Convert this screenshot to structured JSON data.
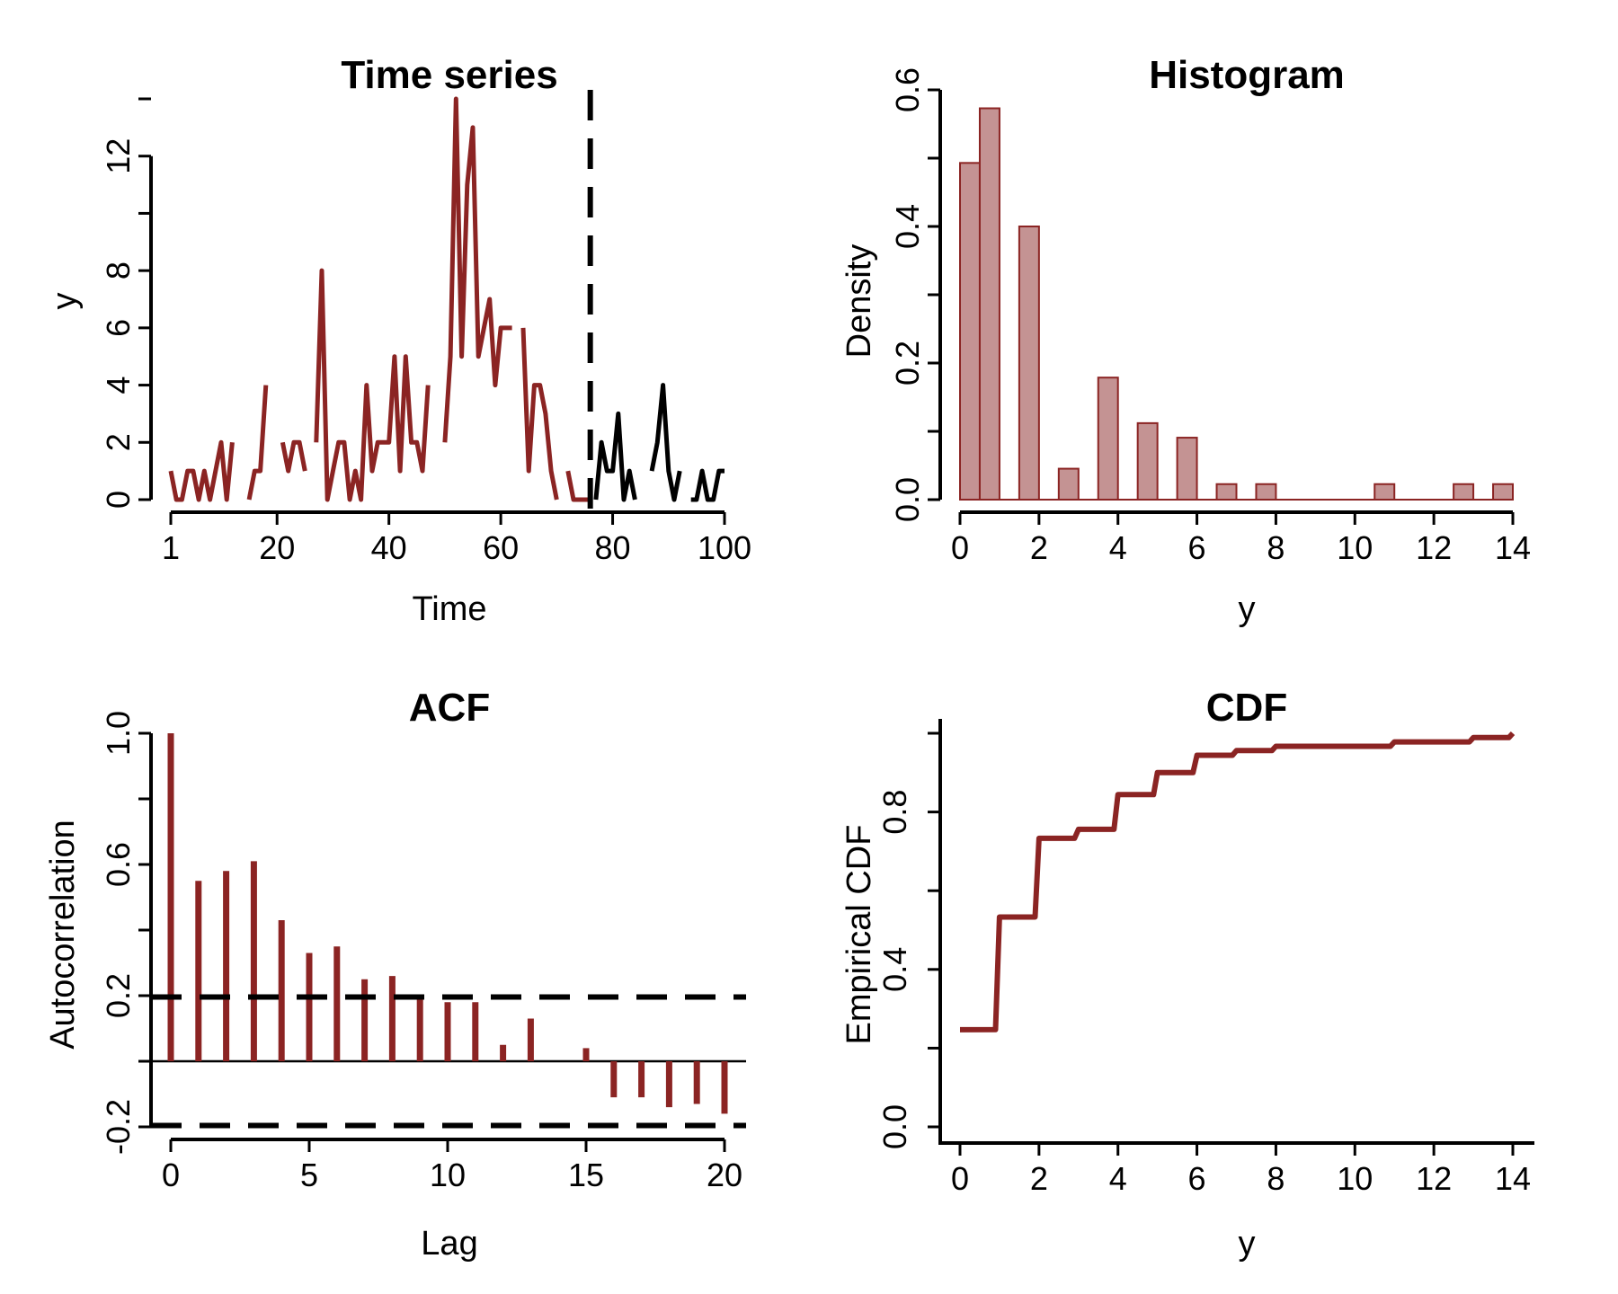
{
  "colors": {
    "series": "#8b2423",
    "fill": "#c49393",
    "forecast": "#000000",
    "axis": "#000000"
  },
  "chart_data": [
    {
      "type": "line",
      "title": "Time series",
      "xlabel": "Time",
      "ylabel": "y",
      "x_ticks": [
        "1",
        "20",
        "40",
        "60",
        "80",
        "100"
      ],
      "y_ticks": [
        "0",
        "2",
        "4",
        "6",
        "8",
        "12"
      ],
      "xlim": [
        1,
        100
      ],
      "ylim": [
        0,
        14
      ],
      "split_line_x": 76,
      "series": [
        {
          "color": "#8b2423",
          "x": [
            1,
            2,
            3,
            4,
            5,
            6,
            7,
            8,
            9,
            10,
            11,
            12,
            13,
            14,
            15,
            16,
            17,
            18,
            19,
            20,
            21,
            22,
            23,
            24,
            25,
            26,
            27,
            28,
            29,
            30,
            31,
            32,
            33,
            34,
            35,
            36,
            37,
            38,
            39,
            40,
            41,
            42,
            43,
            44,
            45,
            46,
            47,
            48,
            49,
            50,
            51,
            52,
            53,
            54,
            55,
            56,
            57,
            58,
            59,
            60,
            61,
            62,
            63,
            64,
            65,
            66,
            67,
            68,
            69,
            70,
            71,
            72,
            73,
            74,
            75,
            76
          ],
          "values": [
            1,
            0,
            0,
            1,
            1,
            0,
            1,
            0,
            1,
            2,
            0,
            2,
            null,
            null,
            0,
            1,
            1,
            4,
            null,
            null,
            2,
            1,
            2,
            2,
            1,
            null,
            2,
            8,
            0,
            1,
            2,
            2,
            0,
            1,
            0,
            4,
            1,
            2,
            2,
            2,
            5,
            1,
            5,
            2,
            2,
            1,
            4,
            null,
            null,
            2,
            5,
            14,
            5,
            11,
            13,
            5,
            6,
            7,
            4,
            6,
            6,
            6,
            null,
            6,
            1,
            4,
            4,
            3,
            1,
            0,
            null,
            1,
            0,
            0,
            0,
            0
          ]
        },
        {
          "color": "#000000",
          "x": [
            77,
            78,
            79,
            80,
            81,
            82,
            83,
            84,
            85,
            86,
            87,
            88,
            89,
            90,
            91,
            92,
            93,
            94,
            95,
            96,
            97,
            98,
            99,
            100
          ],
          "values": [
            0,
            2,
            1,
            1,
            3,
            0,
            1,
            0,
            null,
            null,
            1,
            2,
            4,
            1,
            0,
            1,
            null,
            0,
            0,
            1,
            0,
            0,
            1,
            1
          ]
        }
      ]
    },
    {
      "type": "bar",
      "title": "Histogram",
      "xlabel": "y",
      "ylabel": "Density",
      "x_ticks": [
        "0",
        "2",
        "4",
        "6",
        "8",
        "10",
        "12",
        "14"
      ],
      "y_ticks": [
        "0.0",
        "0.2",
        "0.4",
        "0.6"
      ],
      "xlim": [
        0,
        14
      ],
      "ylim": [
        0,
        0.6
      ],
      "bins": [
        [
          0,
          0.5
        ],
        [
          0.5,
          1
        ],
        [
          1.5,
          2
        ],
        [
          2.5,
          3
        ],
        [
          3.5,
          4
        ],
        [
          4.5,
          5
        ],
        [
          5.5,
          6
        ],
        [
          6.5,
          7
        ],
        [
          7.5,
          8
        ],
        [
          8.5,
          9
        ],
        [
          9.5,
          10
        ],
        [
          10.5,
          11
        ],
        [
          11.5,
          12
        ],
        [
          12.5,
          13
        ],
        [
          13.5,
          14
        ]
      ],
      "values": [
        0.493,
        0.573,
        0.4,
        0.0453,
        0.1787,
        0.112,
        0.0907,
        0.0227,
        0.0227,
        0,
        0,
        0.0227,
        0,
        0.0227,
        0.0227
      ]
    },
    {
      "type": "bar",
      "title": "ACF",
      "xlabel": "Lag",
      "ylabel": "Autocorrelation",
      "x_ticks": [
        "0",
        "5",
        "10",
        "15",
        "20"
      ],
      "y_ticks": [
        "-0.2",
        "0.2",
        "0.6",
        "1.0"
      ],
      "xlim": [
        0,
        20
      ],
      "ylim": [
        -0.2,
        1.0
      ],
      "lags": [
        0,
        1,
        2,
        3,
        4,
        5,
        6,
        7,
        8,
        9,
        10,
        11,
        12,
        13,
        14,
        15,
        16,
        17,
        18,
        19,
        20
      ],
      "values": [
        1.0,
        0.55,
        0.58,
        0.61,
        0.43,
        0.33,
        0.35,
        0.25,
        0.26,
        0.19,
        0.18,
        0.18,
        0.05,
        0.13,
        0.0,
        0.04,
        -0.11,
        -0.11,
        -0.14,
        -0.13,
        -0.16
      ],
      "confidence_bounds": [
        0.196,
        -0.196
      ]
    },
    {
      "type": "line",
      "title": "CDF",
      "xlabel": "y",
      "ylabel": "Empirical CDF",
      "x_ticks": [
        "0",
        "2",
        "4",
        "6",
        "8",
        "10",
        "12",
        "14"
      ],
      "y_ticks": [
        "0.0",
        "0.4",
        "0.8"
      ],
      "xlim": [
        0,
        14
      ],
      "ylim": [
        0,
        1
      ],
      "x": [
        0,
        1,
        2,
        3,
        4,
        5,
        6,
        7,
        8,
        11,
        13,
        14
      ],
      "values": [
        0.247,
        0.533,
        0.733,
        0.756,
        0.844,
        0.9,
        0.944,
        0.956,
        0.967,
        0.978,
        0.989,
        1.0
      ]
    }
  ]
}
